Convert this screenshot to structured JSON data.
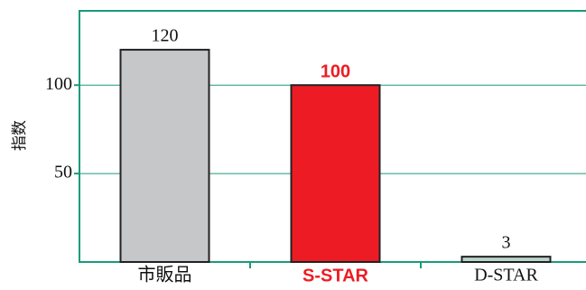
{
  "chart_data": {
    "type": "bar",
    "y_label": "指数",
    "categories": [
      "市販品",
      "S-STAR",
      "D-STAR"
    ],
    "values": [
      120,
      100,
      3
    ],
    "colors": [
      "#c6c7c9",
      "#ed1c24",
      "#b9d4cc"
    ],
    "ylim": [
      0,
      142
    ],
    "yticks": [
      50,
      100
    ],
    "grid": true
  }
}
